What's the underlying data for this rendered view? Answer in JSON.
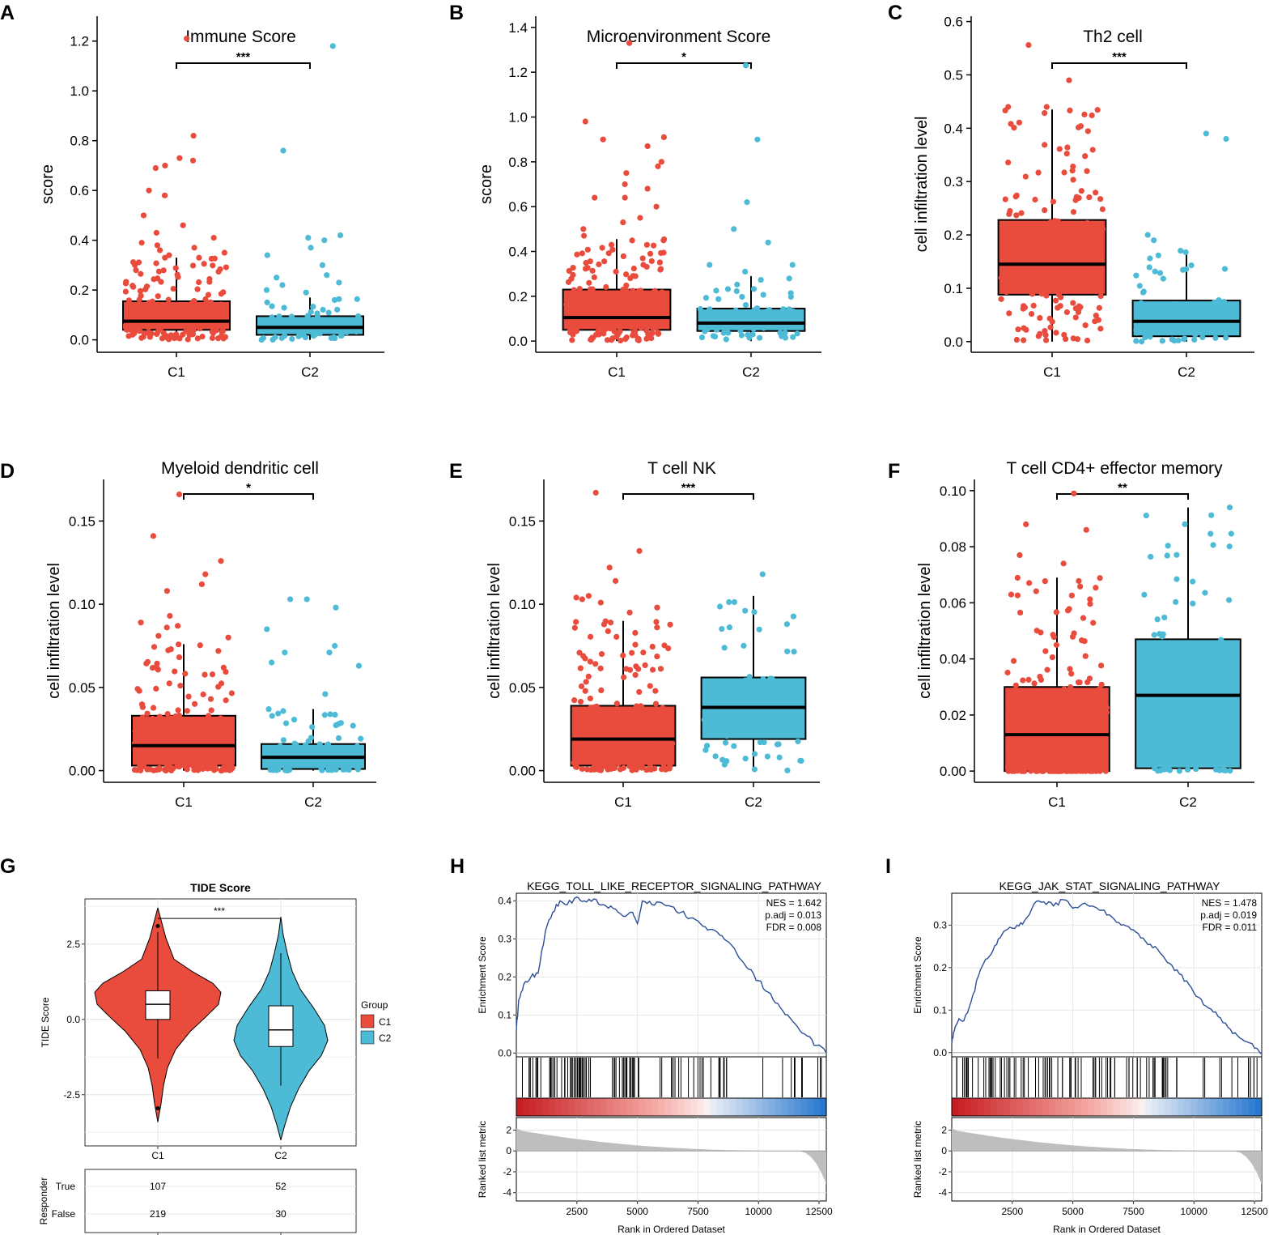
{
  "chart_data": [
    {
      "panel": "A",
      "type": "box",
      "title": "Immune Score",
      "ylabel": "score",
      "ylim": [
        -0.05,
        1.3
      ],
      "yticks": [
        0.0,
        0.2,
        0.4,
        0.6,
        0.8,
        1.0,
        1.2
      ],
      "ytick_labels": [
        "0.0",
        "0.2",
        "0.4",
        "0.6",
        "0.8",
        "1.0",
        "1.2"
      ],
      "categories": [
        "C1",
        "C2"
      ],
      "significance": "***",
      "boxes": [
        {
          "group": "C1",
          "q1": 0.04,
          "median": 0.075,
          "q3": 0.155,
          "whisker_low": 0.0,
          "whisker_high": 0.33,
          "max": 1.21,
          "outliers": [
            0.82,
            0.73,
            0.72,
            0.7,
            0.69,
            0.6,
            0.58,
            0.5,
            0.46,
            0.43,
            0.41,
            0.39,
            0.38,
            0.37,
            0.36,
            0.35,
            0.34
          ]
        },
        {
          "group": "C2",
          "q1": 0.02,
          "median": 0.05,
          "q3": 0.095,
          "whisker_low": 0.0,
          "whisker_high": 0.17,
          "max": 1.18,
          "outliers": [
            0.76,
            0.42,
            0.41,
            0.4,
            0.37,
            0.34,
            0.3,
            0.26,
            0.25,
            0.23,
            0.22,
            0.2,
            0.19
          ]
        }
      ]
    },
    {
      "panel": "B",
      "type": "box",
      "title": "Microenvironment Score",
      "ylabel": "score",
      "ylim": [
        -0.05,
        1.45
      ],
      "yticks": [
        0.0,
        0.2,
        0.4,
        0.6,
        0.8,
        1.0,
        1.2,
        1.4
      ],
      "ytick_labels": [
        "0.0",
        "0.2",
        "0.4",
        "0.6",
        "0.8",
        "1.0",
        "1.2",
        "1.4"
      ],
      "categories": [
        "C1",
        "C2"
      ],
      "significance": "*",
      "boxes": [
        {
          "group": "C1",
          "q1": 0.05,
          "median": 0.105,
          "q3": 0.23,
          "whisker_low": 0.0,
          "whisker_high": 0.455,
          "max": 1.33,
          "outliers": [
            0.98,
            0.91,
            0.9,
            0.87,
            0.8,
            0.78,
            0.75,
            0.7,
            0.68,
            0.64,
            0.64,
            0.6,
            0.55,
            0.53,
            0.5,
            0.47
          ]
        },
        {
          "group": "C2",
          "q1": 0.045,
          "median": 0.08,
          "q3": 0.145,
          "whisker_low": 0.0,
          "whisker_high": 0.29,
          "max": 1.23,
          "outliers": [
            0.9,
            0.62,
            0.5,
            0.44,
            0.34,
            0.34,
            0.31
          ]
        }
      ]
    },
    {
      "panel": "C",
      "type": "box",
      "title": "Th2 cell",
      "ylabel": "cell infiltration level",
      "ylim": [
        -0.02,
        0.61
      ],
      "yticks": [
        0.0,
        0.1,
        0.2,
        0.3,
        0.4,
        0.5,
        0.6
      ],
      "ytick_labels": [
        "0.0",
        "0.1",
        "0.2",
        "0.3",
        "0.4",
        "0.5",
        "0.6"
      ],
      "categories": [
        "C1",
        "C2"
      ],
      "significance": "***",
      "boxes": [
        {
          "group": "C1",
          "q1": 0.088,
          "median": 0.145,
          "q3": 0.228,
          "whisker_low": 0.0,
          "whisker_high": 0.435,
          "max": 0.556,
          "outliers": [
            0.49,
            0.44,
            0.44
          ]
        },
        {
          "group": "C2",
          "q1": 0.01,
          "median": 0.038,
          "q3": 0.077,
          "whisker_low": 0.0,
          "whisker_high": 0.172,
          "max": 0.39,
          "outliers": [
            0.38,
            0.2,
            0.19
          ]
        }
      ]
    },
    {
      "panel": "D",
      "type": "box",
      "title": "Myeloid dendritic cell",
      "ylabel": "cell infiltration level",
      "ylim": [
        -0.007,
        0.175
      ],
      "yticks": [
        0.0,
        0.05,
        0.1,
        0.15
      ],
      "ytick_labels": [
        "0.00",
        "0.05",
        "0.10",
        "0.15"
      ],
      "categories": [
        "C1",
        "C2"
      ],
      "significance": "*",
      "boxes": [
        {
          "group": "C1",
          "q1": 0.003,
          "median": 0.015,
          "q3": 0.033,
          "whisker_low": 0.0,
          "whisker_high": 0.076,
          "max": 0.166,
          "outliers": [
            0.141,
            0.126,
            0.118,
            0.112,
            0.108,
            0.093,
            0.089,
            0.087,
            0.086,
            0.081,
            0.08
          ]
        },
        {
          "group": "C2",
          "q1": 0.001,
          "median": 0.008,
          "q3": 0.016,
          "whisker_low": 0.0,
          "whisker_high": 0.037,
          "max": 0.103,
          "outliers": [
            0.103,
            0.098,
            0.085,
            0.075,
            0.071,
            0.071,
            0.065,
            0.063,
            0.046
          ]
        }
      ]
    },
    {
      "panel": "E",
      "type": "box",
      "title": "T cell NK",
      "ylabel": "cell infiltration level",
      "ylim": [
        -0.007,
        0.175
      ],
      "yticks": [
        0.0,
        0.05,
        0.1,
        0.15
      ],
      "ytick_labels": [
        "0.00",
        "0.05",
        "0.10",
        "0.15"
      ],
      "categories": [
        "C1",
        "C2"
      ],
      "significance": "***",
      "boxes": [
        {
          "group": "C1",
          "q1": 0.003,
          "median": 0.019,
          "q3": 0.039,
          "whisker_low": 0.0,
          "whisker_high": 0.09,
          "max": 0.167,
          "outliers": [
            0.132,
            0.122,
            0.114,
            0.105,
            0.104,
            0.103,
            0.101,
            0.098,
            0.095
          ]
        },
        {
          "group": "C2",
          "q1": 0.019,
          "median": 0.038,
          "q3": 0.056,
          "whisker_low": 0.0,
          "whisker_high": 0.105,
          "max": 0.118,
          "outliers": []
        }
      ]
    },
    {
      "panel": "F",
      "type": "box",
      "title": "T cell CD4+ effector memory",
      "ylabel": "cell infiltration level",
      "ylim": [
        -0.004,
        0.104
      ],
      "yticks": [
        0.0,
        0.02,
        0.04,
        0.06,
        0.08,
        0.1
      ],
      "ytick_labels": [
        "0.00",
        "0.02",
        "0.04",
        "0.06",
        "0.08",
        "0.10"
      ],
      "categories": [
        "C1",
        "C2"
      ],
      "significance": "**",
      "boxes": [
        {
          "group": "C1",
          "q1": 0.0,
          "median": 0.013,
          "q3": 0.03,
          "whisker_low": 0.0,
          "whisker_high": 0.069,
          "max": 0.099,
          "outliers": [
            0.088,
            0.086,
            0.077,
            0.074
          ]
        },
        {
          "group": "C2",
          "q1": 0.001,
          "median": 0.027,
          "q3": 0.047,
          "whisker_low": 0.0,
          "whisker_high": 0.094,
          "max": 0.094,
          "outliers": []
        }
      ]
    },
    {
      "panel": "G",
      "type": "violin",
      "title": "TIDE Score",
      "ylabel": "TIDE Score",
      "ylim": [
        -4.2,
        4.0
      ],
      "yticks": [
        -2.5,
        0.0,
        2.5
      ],
      "ytick_labels": [
        "-2.5",
        "0.0",
        "2.5"
      ],
      "categories": [
        "C1",
        "C2"
      ],
      "significance": "***",
      "violins": [
        {
          "group": "C1",
          "min": -3.4,
          "max": 3.7,
          "q1": 0.0,
          "median": 0.5,
          "q3": 0.95,
          "whisker_low": -1.3,
          "whisker_high": 2.9
        },
        {
          "group": "C2",
          "min": -4.0,
          "max": 3.4,
          "q1": -0.9,
          "median": -0.35,
          "q3": 0.45,
          "whisker_low": -2.2,
          "whisker_high": 2.2
        }
      ],
      "legend": {
        "title": "Group",
        "items": [
          "C1",
          "C2"
        ]
      },
      "responder_table": {
        "title": "Responder",
        "row_labels": [
          "True",
          "False"
        ],
        "columns": [
          "C1",
          "C2"
        ],
        "values": [
          [
            "107",
            "52"
          ],
          [
            "219",
            "30"
          ]
        ]
      }
    },
    {
      "panel": "H",
      "type": "line",
      "title": "KEGG_TOLL_LIKE_RECEPTOR_SIGNALING_PATHWAY",
      "ylabel": "Enrichment Score",
      "xlabel": "Rank in Ordered Dataset",
      "ylim": [
        -0.01,
        0.42
      ],
      "yticks": [
        0.0,
        0.1,
        0.2,
        0.3,
        0.4
      ],
      "ytick_labels": [
        "0.0",
        "0.1",
        "0.2",
        "0.3",
        "0.4"
      ],
      "xlim": [
        0,
        12800
      ],
      "xticks": [
        2500,
        5000,
        7500,
        10000,
        12500
      ],
      "xtick_labels": [
        "2500",
        "5000",
        "7500",
        "10000",
        "12500"
      ],
      "stats": [
        "NES = 1.642",
        "p.adj = 0.013",
        "FDR = 0.008"
      ],
      "x": [
        0,
        100,
        300,
        600,
        900,
        1200,
        1500,
        1800,
        2100,
        2500,
        2800,
        3200,
        3600,
        4000,
        4400,
        4800,
        5000,
        5200,
        5600,
        6000,
        6400,
        6800,
        7200,
        7600,
        8000,
        8400,
        8800,
        9200,
        9600,
        10000,
        10400,
        10800,
        11200,
        11600,
        12000,
        12400,
        12800
      ],
      "es": [
        0.06,
        0.14,
        0.18,
        0.2,
        0.21,
        0.32,
        0.37,
        0.4,
        0.39,
        0.41,
        0.4,
        0.405,
        0.39,
        0.38,
        0.36,
        0.37,
        0.34,
        0.4,
        0.39,
        0.395,
        0.385,
        0.37,
        0.355,
        0.34,
        0.325,
        0.31,
        0.29,
        0.25,
        0.22,
        0.19,
        0.16,
        0.13,
        0.1,
        0.07,
        0.045,
        0.02,
        0.0
      ],
      "hits_rank_ranges": [
        [
          250,
          3100
        ],
        [
          3850,
          5100
        ],
        [
          5900,
          8700
        ],
        [
          10100,
          12600
        ]
      ],
      "metric_ylim": [
        -4.8,
        3.2
      ],
      "metric_yticks": [
        -4,
        -2,
        0,
        2
      ],
      "metric_ytick_labels": [
        "-4",
        "-2",
        "0",
        "2"
      ],
      "metric_ylabel": "Ranked list metric"
    },
    {
      "panel": "I",
      "type": "line",
      "title": "KEGG_JAK_STAT_SIGNALING_PATHWAY",
      "ylabel": "Enrichment Score",
      "xlabel": "Rank in Ordered Dataset",
      "ylim": [
        -0.01,
        0.375
      ],
      "yticks": [
        0.0,
        0.1,
        0.2,
        0.3
      ],
      "ytick_labels": [
        "0.0",
        "0.1",
        "0.2",
        "0.3"
      ],
      "xlim": [
        0,
        12800
      ],
      "xticks": [
        2500,
        5000,
        7500,
        10000,
        12500
      ],
      "xtick_labels": [
        "2500",
        "5000",
        "7500",
        "10000",
        "12500"
      ],
      "stats": [
        "NES = 1.478",
        "p.adj = 0.019",
        "FDR = 0.011"
      ],
      "x": [
        0,
        100,
        300,
        500,
        800,
        1100,
        1400,
        1700,
        2000,
        2300,
        2700,
        3000,
        3400,
        3800,
        4200,
        4600,
        5000,
        5400,
        5800,
        6200,
        6600,
        7000,
        7400,
        7800,
        8200,
        8600,
        9000,
        9400,
        9800,
        10200,
        10600,
        11000,
        11400,
        11800,
        12200,
        12600,
        12800
      ],
      "es": [
        0.02,
        0.05,
        0.08,
        0.075,
        0.12,
        0.18,
        0.22,
        0.24,
        0.27,
        0.29,
        0.3,
        0.31,
        0.35,
        0.355,
        0.345,
        0.36,
        0.34,
        0.35,
        0.345,
        0.335,
        0.32,
        0.3,
        0.29,
        0.27,
        0.255,
        0.235,
        0.21,
        0.185,
        0.16,
        0.13,
        0.105,
        0.085,
        0.06,
        0.04,
        0.025,
        0.01,
        0.0
      ],
      "hits_rank_ranges": [
        [
          200,
          4200
        ],
        [
          4300,
          6800
        ],
        [
          7200,
          10500
        ],
        [
          10800,
          12700
        ]
      ],
      "metric_ylim": [
        -4.8,
        3.2
      ],
      "metric_yticks": [
        -4,
        -2,
        0,
        2
      ],
      "metric_ytick_labels": [
        "-4",
        "-2",
        "0",
        "2"
      ],
      "metric_ylabel": "Ranked list metric"
    }
  ],
  "colors": {
    "c1": "#E94B3C",
    "c2": "#4DBBD5",
    "gsea_line": "#2B4E96",
    "metric": "#BEBEBE"
  }
}
